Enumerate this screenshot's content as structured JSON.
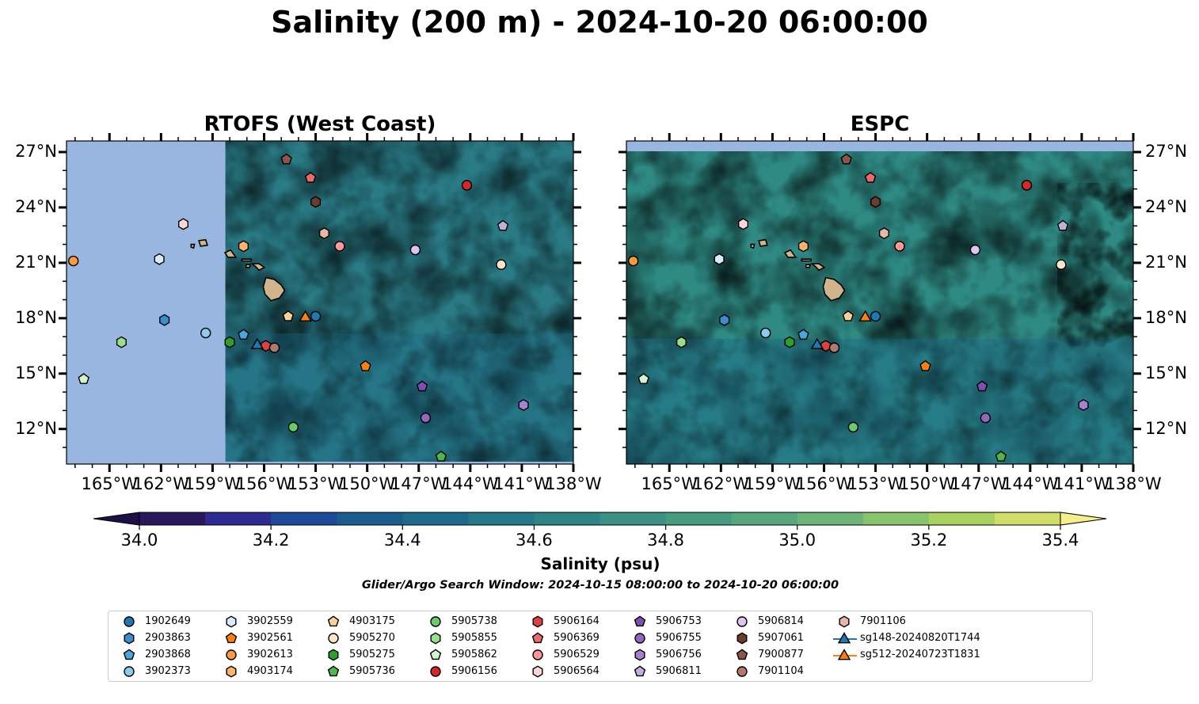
{
  "title": "Salinity (200 m) - 2024-10-20 06:00:00",
  "panels": [
    {
      "title": "RTOFS (West Coast)"
    },
    {
      "title": "ESPC"
    }
  ],
  "lat_ticks": [
    "27°N",
    "24°N",
    "21°N",
    "18°N",
    "15°N",
    "12°N"
  ],
  "lon_ticks": [
    "165°W",
    "162°W",
    "159°W",
    "156°W",
    "153°W",
    "150°W",
    "147°W",
    "144°W",
    "141°W",
    "138°W"
  ],
  "colorbar": {
    "label": "Salinity (psu)",
    "min": 34.0,
    "max": 35.4,
    "step": 0.1,
    "extend": "both",
    "ticks": [
      "34.0",
      "34.2",
      "34.4",
      "34.6",
      "34.8",
      "35.0",
      "35.2",
      "35.4"
    ],
    "colors": [
      "#28195e",
      "#2d2a92",
      "#1e4a99",
      "#1b5c8f",
      "#1c6b8a",
      "#247888",
      "#2e8485",
      "#3a9083",
      "#479b80",
      "#58a77c",
      "#6cb477",
      "#88c46c",
      "#a8d25f",
      "#cede68"
    ],
    "under_color": "#1e1046",
    "over_color": "#f5ee8a"
  },
  "search_window": "Glider/Argo Search Window: 2024-10-15 08:00:00 to 2024-10-20 06:00:00",
  "colors": {
    "land": "#d2b48c",
    "nodata": "#99b6e0",
    "ocean_base": "#2e8485"
  },
  "legend": [
    {
      "label": "1902649",
      "marker": "circle",
      "color": "#1f77b4"
    },
    {
      "label": "2903863",
      "marker": "hexagon",
      "color": "#3a8fd0"
    },
    {
      "label": "2903868",
      "marker": "pentagon",
      "color": "#4aa6dc"
    },
    {
      "label": "3902373",
      "marker": "circle",
      "color": "#8ecbef"
    },
    {
      "label": "3902559",
      "marker": "hexagon",
      "color": "#d6ecfa"
    },
    {
      "label": "3902561",
      "marker": "pentagon",
      "color": "#ff7f0e"
    },
    {
      "label": "3902613",
      "marker": "circle",
      "color": "#ff9a3c"
    },
    {
      "label": "4903174",
      "marker": "hexagon",
      "color": "#ffb46a"
    },
    {
      "label": "4903175",
      "marker": "pentagon",
      "color": "#ffcf99"
    },
    {
      "label": "5905270",
      "marker": "circle",
      "color": "#ffe5c8"
    },
    {
      "label": "5905275",
      "marker": "hexagon",
      "color": "#2ca02c"
    },
    {
      "label": "5905736",
      "marker": "pentagon",
      "color": "#4cb84c"
    },
    {
      "label": "5905738",
      "marker": "circle",
      "color": "#6acb6a"
    },
    {
      "label": "5905855",
      "marker": "hexagon",
      "color": "#98df8a"
    },
    {
      "label": "5905862",
      "marker": "pentagon",
      "color": "#d4f5cc"
    },
    {
      "label": "5906156",
      "marker": "circle",
      "color": "#d62728"
    },
    {
      "label": "5906164",
      "marker": "hexagon",
      "color": "#e04040"
    },
    {
      "label": "5906369",
      "marker": "pentagon",
      "color": "#ec6a6a"
    },
    {
      "label": "5906529",
      "marker": "circle",
      "color": "#ff9896"
    },
    {
      "label": "5906564",
      "marker": "hexagon",
      "color": "#ffd6d6"
    },
    {
      "label": "5906753",
      "marker": "pentagon",
      "color": "#7b52b0"
    },
    {
      "label": "5906755",
      "marker": "circle",
      "color": "#9467bd"
    },
    {
      "label": "5906756",
      "marker": "hexagon",
      "color": "#a882cf"
    },
    {
      "label": "5906811",
      "marker": "pentagon",
      "color": "#c5b0d5"
    },
    {
      "label": "5906814",
      "marker": "circle",
      "color": "#dcc6ef"
    },
    {
      "label": "5907061",
      "marker": "hexagon",
      "color": "#6b3d2e"
    },
    {
      "label": "7900877",
      "marker": "pentagon",
      "color": "#8c564b"
    },
    {
      "label": "7901104",
      "marker": "circle",
      "color": "#b07a6e"
    },
    {
      "label": "7901106",
      "marker": "hexagon",
      "color": "#e8b7a8"
    },
    {
      "label": "sg148-20240820T1744",
      "marker": "triangle",
      "color": "#1f77b4",
      "line": true
    },
    {
      "label": "sg512-20240723T1831",
      "marker": "triangle",
      "color": "#ff7f0e",
      "line": true
    }
  ],
  "map_extent": {
    "lon": [
      -167.5,
      -138.0
    ],
    "lat": [
      10.1,
      27.6
    ]
  },
  "rtofs_data_lon_min": -158.25,
  "platforms": [
    {
      "id": "1902649",
      "lon": -153.0,
      "lat": 18.1
    },
    {
      "id": "2903863",
      "lon": -161.8,
      "lat": 17.9
    },
    {
      "id": "2903868",
      "lon": -157.2,
      "lat": 17.1
    },
    {
      "id": "3902373",
      "lon": -159.4,
      "lat": 17.2
    },
    {
      "id": "3902559",
      "lon": -162.1,
      "lat": 21.2
    },
    {
      "id": "3902561",
      "lon": -150.1,
      "lat": 15.4
    },
    {
      "id": "3902613",
      "lon": -167.1,
      "lat": 21.1
    },
    {
      "id": "4903174",
      "lon": -157.2,
      "lat": 21.9
    },
    {
      "id": "4903175",
      "lon": -154.6,
      "lat": 18.1
    },
    {
      "id": "5905270",
      "lon": -142.2,
      "lat": 20.9
    },
    {
      "id": "5905275",
      "lon": -158.0,
      "lat": 16.7
    },
    {
      "id": "5905736",
      "lon": -145.7,
      "lat": 10.5
    },
    {
      "id": "5905738",
      "lon": -154.3,
      "lat": 12.1
    },
    {
      "id": "5905855",
      "lon": -164.3,
      "lat": 16.7
    },
    {
      "id": "5905862",
      "lon": -166.5,
      "lat": 14.7
    },
    {
      "id": "5906156",
      "lon": -144.2,
      "lat": 25.2
    },
    {
      "id": "5906164",
      "lon": -155.9,
      "lat": 16.5
    },
    {
      "id": "5906369",
      "lon": -153.3,
      "lat": 25.6
    },
    {
      "id": "5906529",
      "lon": -151.6,
      "lat": 21.9
    },
    {
      "id": "5906564",
      "lon": -160.7,
      "lat": 23.1
    },
    {
      "id": "5906753",
      "lon": -146.8,
      "lat": 14.3
    },
    {
      "id": "5906755",
      "lon": -146.6,
      "lat": 12.6
    },
    {
      "id": "5906756",
      "lon": -140.9,
      "lat": 13.3
    },
    {
      "id": "5906811",
      "lon": -142.1,
      "lat": 23.0
    },
    {
      "id": "5906814",
      "lon": -147.2,
      "lat": 21.7
    },
    {
      "id": "5907061",
      "lon": -153.0,
      "lat": 24.3
    },
    {
      "id": "7900877",
      "lon": -154.7,
      "lat": 26.6
    },
    {
      "id": "7901104",
      "lon": -155.4,
      "lat": 16.4
    },
    {
      "id": "7901106",
      "lon": -152.5,
      "lat": 22.6
    },
    {
      "id": "sg148-20240820T1744",
      "lon": -156.4,
      "lat": 16.6
    },
    {
      "id": "sg512-20240723T1831",
      "lon": -153.6,
      "lat": 18.1
    }
  ]
}
